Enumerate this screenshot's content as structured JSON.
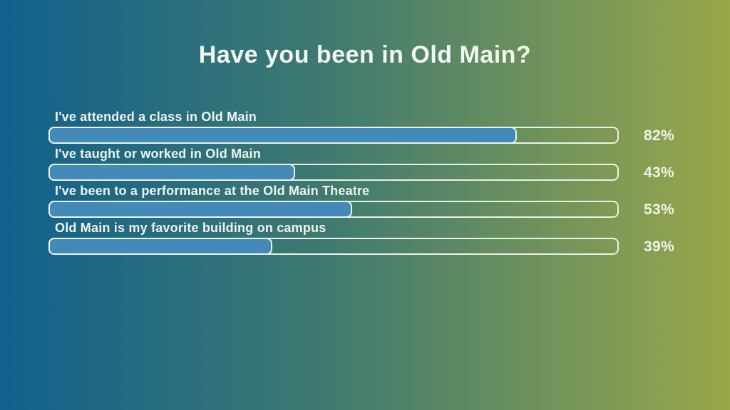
{
  "page": {
    "title": "Have you been in Old Main?"
  },
  "colors": {
    "background_gradient_left": "#11608d",
    "background_gradient_right": "#9aa74a",
    "bar_fill": "#448ab9",
    "bar_outline": "#ecf1e6",
    "text": "#f3f7ef"
  },
  "chart_data": {
    "type": "bar",
    "orientation": "horizontal",
    "title": "Have you been in Old Main?",
    "categories": [
      "I've attended a class in Old Main",
      "I've taught or worked in Old Main",
      "I've been to a performance at the Old Main Theatre",
      "Old Main is my favorite building on campus"
    ],
    "values": [
      82,
      43,
      53,
      39
    ],
    "xlabel": "",
    "ylabel": "",
    "xlim": [
      0,
      100
    ],
    "grid": false,
    "legend": "none",
    "value_label_position": "right-of-bar",
    "bars": [
      {
        "label": "I've attended a class in Old Main",
        "value": 82,
        "display": "82%"
      },
      {
        "label": "I've taught or worked in Old Main",
        "value": 43,
        "display": "43%"
      },
      {
        "label": "I've been to a performance at the Old Main Theatre",
        "value": 53,
        "display": "53%"
      },
      {
        "label": "Old Main is my favorite building on campus",
        "value": 39,
        "display": "39%"
      }
    ]
  }
}
